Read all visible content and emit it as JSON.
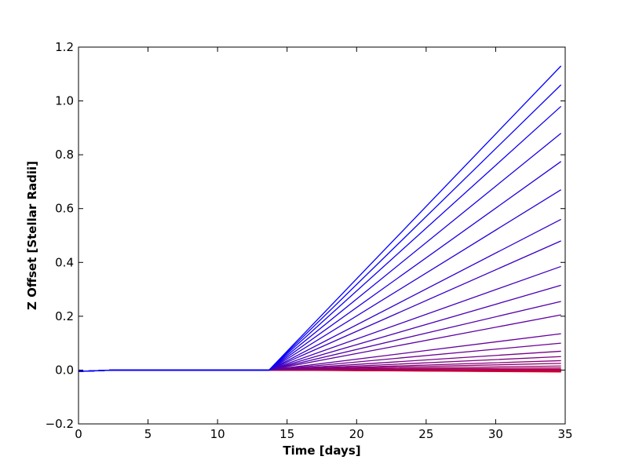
{
  "chart_data": {
    "type": "line",
    "xlabel": "Time [days]",
    "ylabel": "Z Offset [Stellar Radii]",
    "xlim": [
      0,
      35
    ],
    "ylim": [
      -0.2,
      1.2
    ],
    "xticks": [
      "0",
      "5",
      "10",
      "15",
      "20",
      "25",
      "30",
      "35"
    ],
    "yticks": [
      "−0.2",
      "0.0",
      "0.2",
      "0.4",
      "0.6",
      "0.8",
      "1.0",
      "1.2"
    ],
    "grid": false,
    "legend": "none",
    "x": [
      0,
      2.5,
      13.7,
      34.7
    ],
    "series": [
      {
        "values": [
          -0.005,
          0,
          0,
          1.13
        ],
        "color": "#0000ff"
      },
      {
        "values": [
          -0.005,
          0,
          0,
          1.06
        ],
        "color": "#0800f7"
      },
      {
        "values": [
          -0.005,
          0,
          0,
          0.98
        ],
        "color": "#1000ef"
      },
      {
        "values": [
          -0.005,
          0,
          0,
          0.88
        ],
        "color": "#1900e6"
      },
      {
        "values": [
          -0.005,
          0,
          0,
          0.775
        ],
        "color": "#2100de"
      },
      {
        "values": [
          -0.005,
          0,
          0,
          0.67
        ],
        "color": "#2a00d5"
      },
      {
        "values": [
          -0.005,
          0,
          0,
          0.56
        ],
        "color": "#3200cd"
      },
      {
        "values": [
          -0.005,
          0,
          0,
          0.48
        ],
        "color": "#3b00c4"
      },
      {
        "values": [
          -0.005,
          0,
          0,
          0.385
        ],
        "color": "#4300bc"
      },
      {
        "values": [
          -0.005,
          0,
          0,
          0.315
        ],
        "color": "#4c00b3"
      },
      {
        "values": [
          -0.005,
          0,
          0,
          0.255
        ],
        "color": "#5400ab"
      },
      {
        "values": [
          -0.005,
          0,
          0,
          0.205
        ],
        "color": "#5d00a2"
      },
      {
        "values": [
          -0.005,
          0,
          0,
          0.135
        ],
        "color": "#65009a"
      },
      {
        "values": [
          -0.005,
          0,
          0,
          0.1
        ],
        "color": "#6e0091"
      },
      {
        "values": [
          -0.005,
          0,
          0,
          0.07
        ],
        "color": "#760089"
      },
      {
        "values": [
          -0.005,
          0,
          0,
          0.05
        ],
        "color": "#7f0080"
      },
      {
        "values": [
          -0.005,
          0,
          0,
          0.035
        ],
        "color": "#880077"
      },
      {
        "values": [
          -0.005,
          0,
          0,
          0.025
        ],
        "color": "#90006f"
      },
      {
        "values": [
          -0.005,
          0,
          0,
          0.015
        ],
        "color": "#990066"
      },
      {
        "values": [
          -0.005,
          0,
          0,
          0.008
        ],
        "color": "#a1005e"
      },
      {
        "values": [
          -0.005,
          0,
          0,
          0.003
        ],
        "color": "#aa0055"
      },
      {
        "values": [
          -0.005,
          0,
          0,
          0
        ],
        "color": "#b2004d"
      },
      {
        "values": [
          -0.005,
          0,
          0,
          -0.002
        ],
        "color": "#bb0044"
      },
      {
        "values": [
          -0.005,
          0,
          0,
          -0.004
        ],
        "color": "#c3003c"
      },
      {
        "values": [
          -0.005,
          0,
          0,
          -0.005
        ],
        "color": "#cc0033"
      },
      {
        "values": [
          -0.005,
          0,
          0,
          -0.006
        ],
        "color": "#e6001a"
      },
      {
        "values": [
          -0.005,
          0,
          0,
          -0.007
        ],
        "color": "#ff0000"
      }
    ]
  }
}
